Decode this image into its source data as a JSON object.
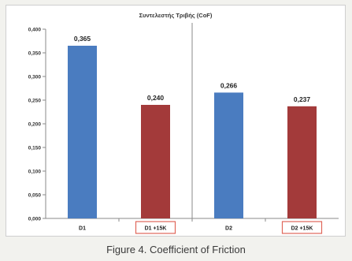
{
  "chart_data": {
    "type": "bar",
    "title": "Συντελεστής Τριβής (CoF)",
    "categories": [
      "D1",
      "D1 +15K",
      "D2",
      "D2 +15K"
    ],
    "values": [
      0.365,
      0.24,
      0.266,
      0.237
    ],
    "value_labels": [
      "0,365",
      "0,240",
      "0,266",
      "0,237"
    ],
    "bar_colors": [
      "#4a7cc0",
      "#a33a3a",
      "#4a7cc0",
      "#a33a3a"
    ],
    "highlighted_categories": [
      "D1 +15K",
      "D2 +15K"
    ],
    "highlight_color": "#e0665a",
    "ylim": [
      0,
      0.4
    ],
    "yticks": [
      0,
      0.05,
      0.1,
      0.15,
      0.2,
      0.25,
      0.3,
      0.35,
      0.4
    ],
    "ytick_labels": [
      "0,000",
      "0,050",
      "0,100",
      "0,150",
      "0,200",
      "0,250",
      "0,300",
      "0,350",
      "0,400"
    ],
    "group_divider_after": "D1 +15K",
    "grid": false,
    "xlabel": "",
    "ylabel": ""
  },
  "caption": "Figure 4. Coefficient of Friction"
}
